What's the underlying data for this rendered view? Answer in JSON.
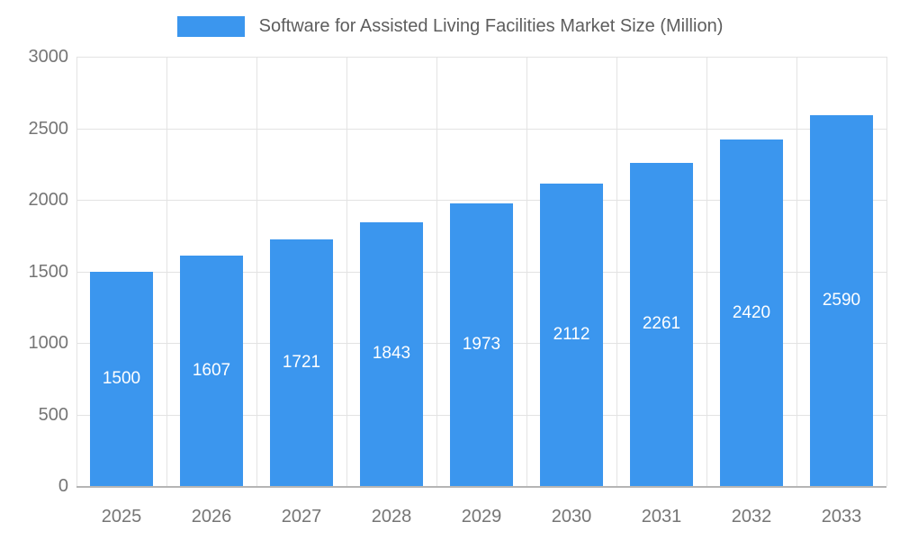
{
  "chart_data": {
    "type": "bar",
    "title": "Software for Assisted Living Facilities Market Size (Million)",
    "categories": [
      "2025",
      "2026",
      "2027",
      "2028",
      "2029",
      "2030",
      "2031",
      "2032",
      "2033"
    ],
    "values": [
      1500,
      1607,
      1721,
      1843,
      1973,
      2112,
      2261,
      2420,
      2590
    ],
    "series": [
      {
        "name": "Software for Assisted Living Facilities Market Size (Million)",
        "values": [
          1500,
          1607,
          1721,
          1843,
          1973,
          2112,
          2261,
          2420,
          2590
        ]
      }
    ],
    "xlabel": "",
    "ylabel": "",
    "ylim": [
      0,
      3000
    ],
    "yticks": [
      0,
      500,
      1000,
      1500,
      2000,
      2500,
      3000
    ],
    "grid": true,
    "legend_position": "top",
    "data_labels": "inside-center",
    "colors": {
      "bar": "#3B96EE",
      "bar_label": "#ffffff",
      "axis_text": "#757575",
      "title_text": "#5d5d5d",
      "gridline": "#e3e3e3",
      "axis_line": "#b5b5b5",
      "background": "#ffffff"
    }
  }
}
